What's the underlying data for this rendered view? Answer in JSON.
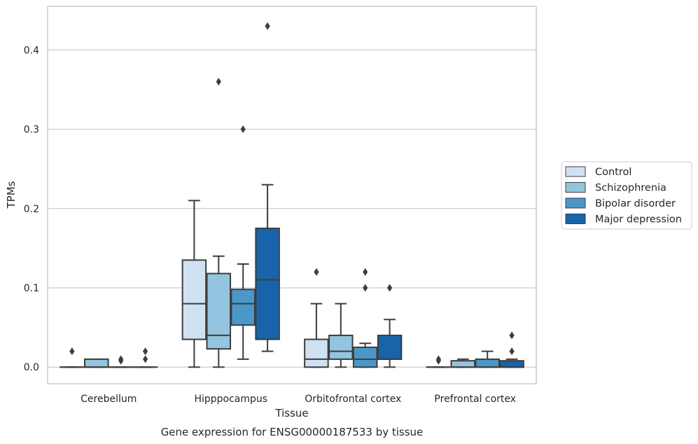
{
  "chart_data": {
    "type": "boxplot",
    "xlabel": "Tissue",
    "ylabel": "TPMs",
    "caption": "Gene expression for ENSG00000187533 by tissue",
    "ylim": [
      -0.021,
      0.455
    ],
    "yticks": [
      "0.0",
      "0.1",
      "0.2",
      "0.3",
      "0.4"
    ],
    "grid": "horizontal",
    "legend_position": "right",
    "categories": [
      "Cerebellum",
      "Hipppocampus",
      "Orbitofrontal cortex",
      "Prefrontal cortex"
    ],
    "series": [
      {
        "name": "Control",
        "color": "#d0e1f2",
        "boxes": [
          {
            "q1": 0.0,
            "median": 0.0,
            "q3": 0.0,
            "whisker_low": 0.0,
            "whisker_high": 0.0,
            "outliers": [
              0.02
            ]
          },
          {
            "q1": 0.035,
            "median": 0.08,
            "q3": 0.135,
            "whisker_low": 0.0,
            "whisker_high": 0.21,
            "outliers": []
          },
          {
            "q1": 0.0,
            "median": 0.01,
            "q3": 0.035,
            "whisker_low": 0.0,
            "whisker_high": 0.08,
            "outliers": [
              0.12
            ]
          },
          {
            "q1": 0.0,
            "median": 0.0,
            "q3": 0.0,
            "whisker_low": 0.0,
            "whisker_high": 0.0,
            "outliers": [
              0.01,
              0.008
            ]
          }
        ]
      },
      {
        "name": "Schizophrenia",
        "color": "#94c4df",
        "boxes": [
          {
            "q1": 0.0,
            "median": 0.0,
            "q3": 0.01,
            "whisker_low": 0.0,
            "whisker_high": 0.01,
            "outliers": []
          },
          {
            "q1": 0.023,
            "median": 0.04,
            "q3": 0.118,
            "whisker_low": 0.0,
            "whisker_high": 0.14,
            "outliers": [
              0.36
            ]
          },
          {
            "q1": 0.01,
            "median": 0.02,
            "q3": 0.04,
            "whisker_low": 0.0,
            "whisker_high": 0.08,
            "outliers": []
          },
          {
            "q1": 0.0,
            "median": 0.0,
            "q3": 0.008,
            "whisker_low": 0.0,
            "whisker_high": 0.01,
            "outliers": []
          }
        ]
      },
      {
        "name": "Bipolar disorder",
        "color": "#4a98c9",
        "boxes": [
          {
            "q1": 0.0,
            "median": 0.0,
            "q3": 0.0,
            "whisker_low": 0.0,
            "whisker_high": 0.0,
            "outliers": [
              0.01,
              0.008
            ]
          },
          {
            "q1": 0.053,
            "median": 0.08,
            "q3": 0.098,
            "whisker_low": 0.01,
            "whisker_high": 0.13,
            "outliers": [
              0.3
            ]
          },
          {
            "q1": 0.0,
            "median": 0.01,
            "q3": 0.025,
            "whisker_low": 0.0,
            "whisker_high": 0.03,
            "outliers": [
              0.1,
              0.12
            ]
          },
          {
            "q1": 0.0,
            "median": 0.0,
            "q3": 0.01,
            "whisker_low": 0.0,
            "whisker_high": 0.02,
            "outliers": []
          }
        ]
      },
      {
        "name": "Major depression",
        "color": "#1764ab",
        "boxes": [
          {
            "q1": 0.0,
            "median": 0.0,
            "q3": 0.0,
            "whisker_low": 0.0,
            "whisker_high": 0.0,
            "outliers": [
              0.01,
              0.02
            ]
          },
          {
            "q1": 0.035,
            "median": 0.11,
            "q3": 0.175,
            "whisker_low": 0.02,
            "whisker_high": 0.23,
            "outliers": [
              0.43
            ]
          },
          {
            "q1": 0.01,
            "median": 0.01,
            "q3": 0.04,
            "whisker_low": 0.0,
            "whisker_high": 0.06,
            "outliers": [
              0.1
            ]
          },
          {
            "q1": 0.0,
            "median": 0.0,
            "q3": 0.008,
            "whisker_low": 0.0,
            "whisker_high": 0.01,
            "outliers": [
              0.02,
              0.04
            ]
          }
        ]
      }
    ]
  }
}
